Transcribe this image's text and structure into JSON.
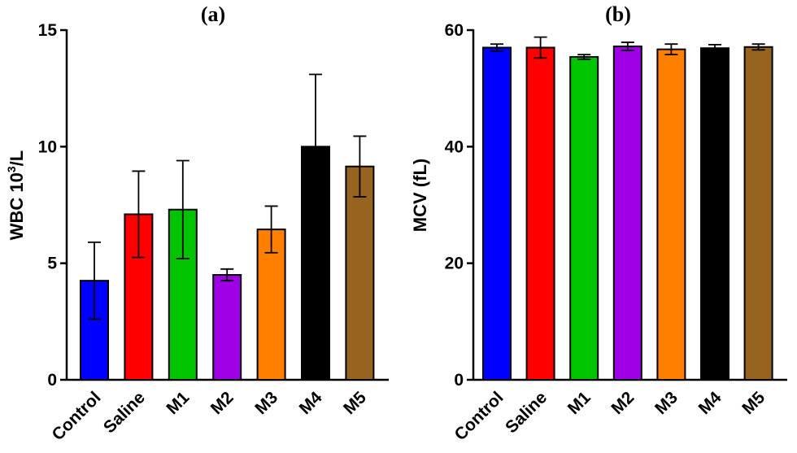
{
  "chart_data": [
    {
      "type": "bar",
      "title": "(a)",
      "ylabel": "WBC 10",
      "ylabel_sup": "3",
      "ylabel_suffix": "/L",
      "ylim": [
        0,
        15
      ],
      "yticks": [
        0,
        5,
        10,
        15
      ],
      "categories": [
        "Control",
        "Saline",
        "M1",
        "M2",
        "M3",
        "M4",
        "M5"
      ],
      "values": [
        4.25,
        7.1,
        7.3,
        4.5,
        6.45,
        10.0,
        9.15
      ],
      "errors": [
        1.65,
        1.85,
        2.1,
        0.25,
        1.0,
        3.1,
        1.3
      ],
      "colors": [
        "#0000ff",
        "#ff0000",
        "#00c400",
        "#a000e6",
        "#ff8000",
        "#000000",
        "#96641e"
      ],
      "grid": false
    },
    {
      "type": "bar",
      "title": "(b)",
      "ylabel": "MCV (fL)",
      "ylim": [
        0,
        60
      ],
      "yticks": [
        0,
        20,
        40,
        60
      ],
      "categories": [
        "Control",
        "Saline",
        "M1",
        "M2",
        "M3",
        "M4",
        "M5"
      ],
      "values": [
        57.0,
        57.0,
        55.4,
        57.2,
        56.7,
        56.9,
        57.1
      ],
      "errors": [
        0.6,
        1.8,
        0.4,
        0.7,
        0.9,
        0.6,
        0.5
      ],
      "colors": [
        "#0000ff",
        "#ff0000",
        "#00c400",
        "#a000e6",
        "#ff8000",
        "#000000",
        "#96641e"
      ],
      "grid": false
    }
  ]
}
